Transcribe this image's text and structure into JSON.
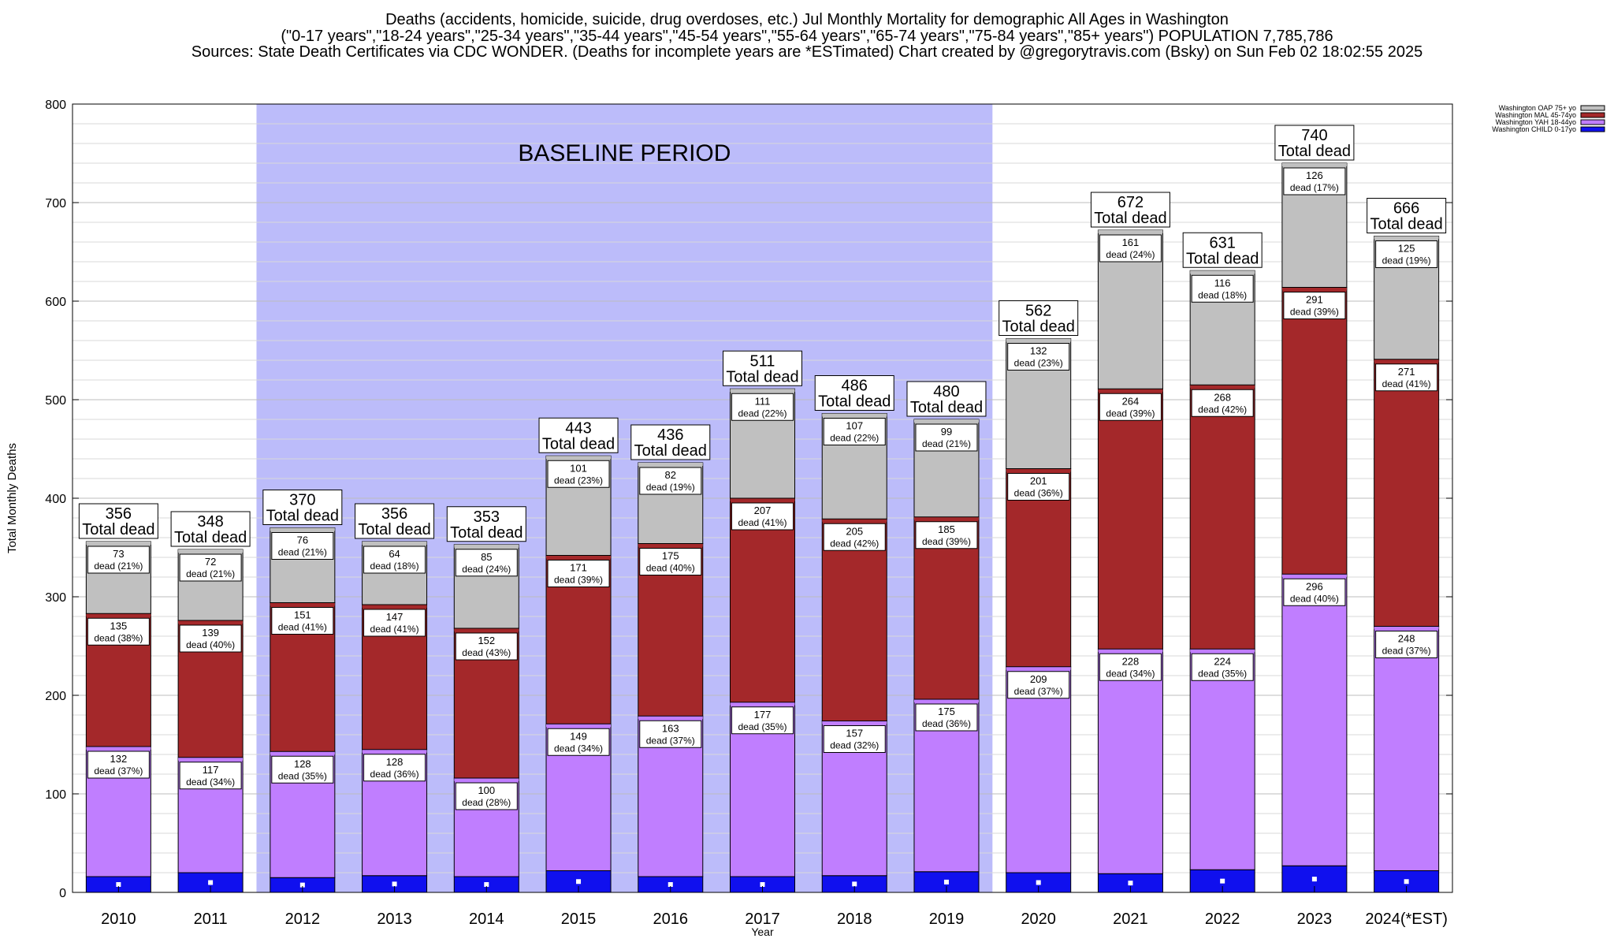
{
  "title_lines": [
    "Deaths (accidents, homicide, suicide, drug overdoses, etc.) Jul Monthly Mortality for demographic All Ages in Washington",
    "(\"0-17 years\",\"18-24 years\",\"25-34 years\",\"35-44 years\",\"45-54 years\",\"55-64 years\",\"65-74 years\",\"75-84 years\",\"85+ years\") POPULATION 7,785,786",
    "Sources: State Death Certificates via CDC WONDER. (Deaths for incomplete years are *ESTimated)                Chart created by @gregorytravis.com (Bsky) on Sun Feb 02 18:02:55 2025"
  ],
  "chart_data": {
    "type": "bar",
    "stacked": true,
    "xlabel": "Year",
    "ylabel": "Total Monthly Deaths",
    "ylim": [
      0,
      800
    ],
    "yticks": [
      0,
      100,
      200,
      300,
      400,
      500,
      600,
      700,
      800
    ],
    "grid": "minor horizontal lines every 20",
    "legend_position": "top-right",
    "categories": [
      "2010",
      "2011",
      "2012",
      "2013",
      "2014",
      "2015",
      "2016",
      "2017",
      "2018",
      "2019",
      "2020",
      "2021",
      "2022",
      "2023",
      "2024(*EST)"
    ],
    "baseline_label": "BASELINE PERIOD",
    "baseline_range": [
      "2012",
      "2019"
    ],
    "baseline_color": "#bcbcfa",
    "total_label_suffix": "Total dead",
    "segment_label_prefix": "dead",
    "series": [
      {
        "name": "Washington CHILD 0-17yo",
        "color": "#1010ee",
        "labeled": false,
        "values": [
          16,
          20,
          15,
          17,
          16,
          22,
          16,
          16,
          17,
          21,
          20,
          19,
          23,
          27,
          22
        ]
      },
      {
        "name": "Washington YAH 18-44yo",
        "color": "#c07eff",
        "labeled": true,
        "values": [
          132,
          117,
          128,
          128,
          100,
          149,
          163,
          177,
          157,
          175,
          209,
          228,
          224,
          296,
          248
        ],
        "percents": [
          37,
          34,
          35,
          36,
          28,
          34,
          37,
          35,
          32,
          36,
          37,
          34,
          35,
          40,
          37
        ]
      },
      {
        "name": "Washington MAL 45-74yo",
        "color": "#a4282a",
        "labeled": true,
        "values": [
          135,
          139,
          151,
          147,
          152,
          171,
          175,
          207,
          205,
          185,
          201,
          264,
          268,
          291,
          271
        ],
        "percents": [
          38,
          40,
          41,
          41,
          43,
          39,
          40,
          41,
          42,
          39,
          36,
          39,
          42,
          39,
          41
        ]
      },
      {
        "name": "Washington OAP 75+ yo",
        "color": "#c0c0c0",
        "labeled": true,
        "values": [
          73,
          72,
          76,
          64,
          85,
          101,
          82,
          111,
          107,
          99,
          132,
          161,
          116,
          126,
          125
        ],
        "percents": [
          21,
          21,
          21,
          18,
          24,
          23,
          19,
          22,
          22,
          21,
          23,
          24,
          18,
          17,
          19
        ]
      }
    ],
    "totals": [
      356,
      348,
      370,
      356,
      353,
      443,
      436,
      511,
      486,
      480,
      562,
      672,
      631,
      740,
      666
    ],
    "legend_order": [
      "Washington OAP 75+ yo",
      "Washington MAL 45-74yo",
      "Washington YAH 18-44yo",
      "Washington CHILD 0-17yo"
    ]
  }
}
